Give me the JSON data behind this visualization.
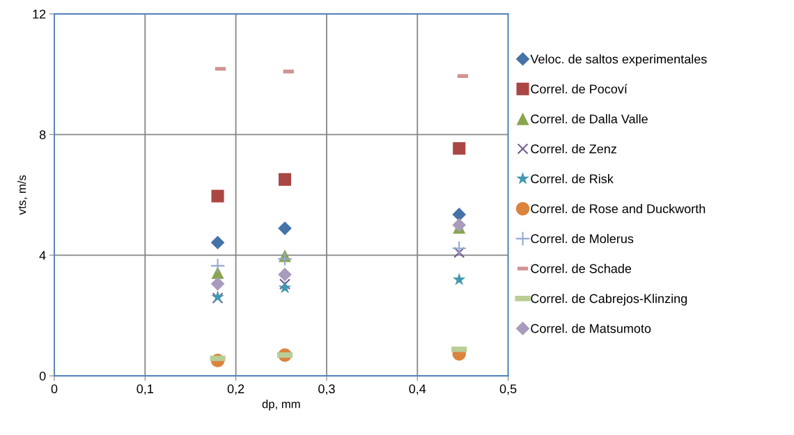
{
  "chart_data": {
    "type": "scatter",
    "xlabel": "dp, mm",
    "ylabel": "vts, m/s",
    "xlim": [
      0,
      0.5
    ],
    "ylim": [
      0,
      12
    ],
    "xticks": [
      {
        "value": 0,
        "label": "0"
      },
      {
        "value": 0.1,
        "label": "0,1"
      },
      {
        "value": 0.2,
        "label": "0,2"
      },
      {
        "value": 0.3,
        "label": "0,3"
      },
      {
        "value": 0.4,
        "label": "0,4"
      },
      {
        "value": 0.5,
        "label": "0,5"
      }
    ],
    "yticks": [
      0,
      4,
      8,
      12
    ],
    "grid": true,
    "legend": "right",
    "x": [
      0.18,
      0.254,
      0.446
    ],
    "series": [
      {
        "name": "Veloc. de saltos experimentales",
        "color": "#4572a7",
        "marker": "diamond",
        "values": [
          4.42,
          4.89,
          5.35
        ]
      },
      {
        "name": "Correl. de Pocoví",
        "color": "#aa4643",
        "marker": "square",
        "values": [
          5.96,
          6.51,
          7.54
        ]
      },
      {
        "name": "Correl. de Dalla Valle",
        "color": "#89a54e",
        "marker": "triangle",
        "values": [
          3.42,
          3.98,
          4.92
        ]
      },
      {
        "name": "Correl. de Zenz",
        "color": "#71588f",
        "marker": "cross",
        "values": [
          2.58,
          3.04,
          4.09
        ]
      },
      {
        "name": "Correl. de Risk",
        "color": "#4198af",
        "marker": "star",
        "values": [
          2.61,
          2.92,
          3.19
        ]
      },
      {
        "name": "Correl. de Rose and Duckworth",
        "color": "#db843d",
        "marker": "circle",
        "values": [
          0.51,
          0.69,
          0.73
        ]
      },
      {
        "name": "Correl. de Molerus",
        "color": "#93a9cf",
        "marker": "plus",
        "values": [
          3.65,
          3.88,
          4.23
        ]
      },
      {
        "name": "Correl. de Schade",
        "color": "#d19392",
        "marker": "square",
        "x": [
          0.183,
          0.258,
          0.45
        ],
        "values": [
          10.18,
          10.09,
          9.94
        ]
      },
      {
        "name": "Correl. de Cabrejos-Klinzing",
        "color": "#b9cd96",
        "marker": "square",
        "values": [
          0.58,
          0.69,
          0.88
        ]
      },
      {
        "name": "Correl. de Matsumoto",
        "color": "#a99bbd",
        "marker": "diamond",
        "values": [
          3.05,
          3.36,
          5.0
        ]
      }
    ]
  }
}
